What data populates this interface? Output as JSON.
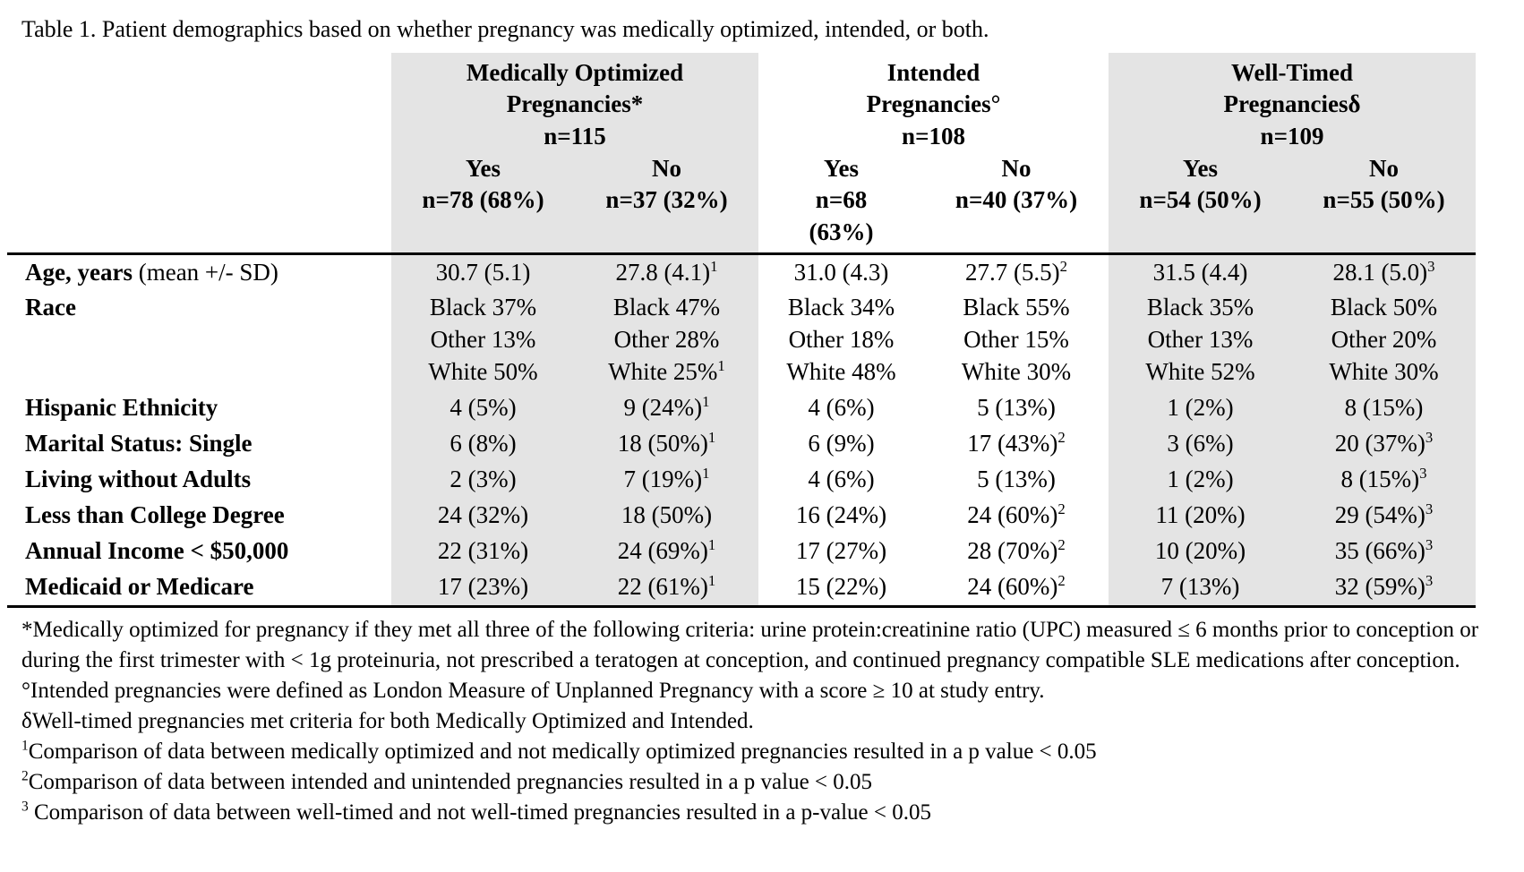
{
  "title": "Table 1. Patient demographics based on whether pregnancy was medically optimized, intended, or both.",
  "colors": {
    "shaded_column_bg": "#e4e4e4",
    "text": "#000000",
    "rule": "#000000"
  },
  "table": {
    "column_groups": [
      {
        "title": "Medically Optimized\nPregnancies*\nn=115",
        "shaded": true
      },
      {
        "title": "Intended\nPregnancies°\nn=108",
        "shaded": false
      },
      {
        "title": "Well-Timed\nPregnanciesδ\nn=109",
        "shaded": true
      }
    ],
    "subheaders": [
      "Yes\nn=78 (68%)",
      "No\nn=37 (32%)",
      "Yes\nn=68\n(63%)",
      "No\nn=40 (37%)",
      "Yes\nn=54 (50%)",
      "No\nn=55 (50%)"
    ],
    "rows": [
      {
        "label": "Age, years",
        "label_suffix": " (mean +/- SD)",
        "values": [
          "30.7 (5.1)",
          "27.8 (4.1)^1",
          "31.0 (4.3)",
          "27.7 (5.5)^2",
          "31.5 (4.4)",
          "28.1 (5.0)^3"
        ]
      },
      {
        "label": "Race",
        "label_suffix": "",
        "values": [
          "Black 37%\nOther 13%\nWhite 50%",
          "Black 47%\nOther 28%\nWhite 25%^1",
          "Black 34%\nOther 18%\nWhite 48%",
          "Black 55%\nOther 15%\nWhite 30%",
          "Black 35%\nOther 13%\nWhite 52%",
          "Black 50%\nOther 20%\nWhite 30%"
        ]
      },
      {
        "label": "Hispanic Ethnicity",
        "label_suffix": "",
        "values": [
          "4 (5%)",
          "9 (24%)^1",
          "4 (6%)",
          "5 (13%)",
          "1 (2%)",
          "8 (15%)"
        ]
      },
      {
        "label": "Marital Status: Single",
        "label_suffix": "",
        "values": [
          "6 (8%)",
          "18 (50%)^1",
          "6 (9%)",
          "17 (43%)^2",
          "3 (6%)",
          "20 (37%)^3"
        ]
      },
      {
        "label": "Living without Adults",
        "label_suffix": "",
        "values": [
          "2 (3%)",
          "7 (19%)^1",
          "4 (6%)",
          "5 (13%)",
          "1 (2%)",
          "8 (15%)^3"
        ]
      },
      {
        "label": "Less than College Degree",
        "label_suffix": "",
        "values": [
          "24 (32%)",
          "18 (50%)",
          "16 (24%)",
          "24 (60%)^2",
          "11 (20%)",
          "29 (54%)^3"
        ]
      },
      {
        "label": "Annual Income < $50,000",
        "label_suffix": "",
        "values": [
          "22 (31%)",
          "24 (69%)^1",
          "17 (27%)",
          "28 (70%)^2",
          "10 (20%)",
          "35 (66%)^3"
        ]
      },
      {
        "label": "Medicaid or Medicare",
        "label_suffix": "",
        "values": [
          "17 (23%)",
          "22 (61%)^1",
          "15 (22%)",
          "24 (60%)^2",
          "7 (13%)",
          "32 (59%)^3"
        ]
      }
    ]
  },
  "footnotes": [
    "*Medically optimized for pregnancy if they met all three of the following criteria: urine protein:creatinine ratio (UPC) measured ≤ 6 months prior to conception or during the first trimester with < 1g proteinuria, not prescribed a teratogen at conception, and continued pregnancy compatible SLE medications after conception.",
    "°Intended pregnancies were defined as London Measure of Unplanned Pregnancy with a score ≥ 10 at study entry.",
    "δWell-timed pregnancies met criteria for both Medically Optimized and Intended.",
    "^1Comparison of data between medically optimized and not medically optimized pregnancies resulted in a p value < 0.05",
    "^2Comparison of data between intended and unintended pregnancies resulted in a p value < 0.05",
    "^3 Comparison of data between well-timed and not well-timed pregnancies resulted in a p-value < 0.05"
  ]
}
